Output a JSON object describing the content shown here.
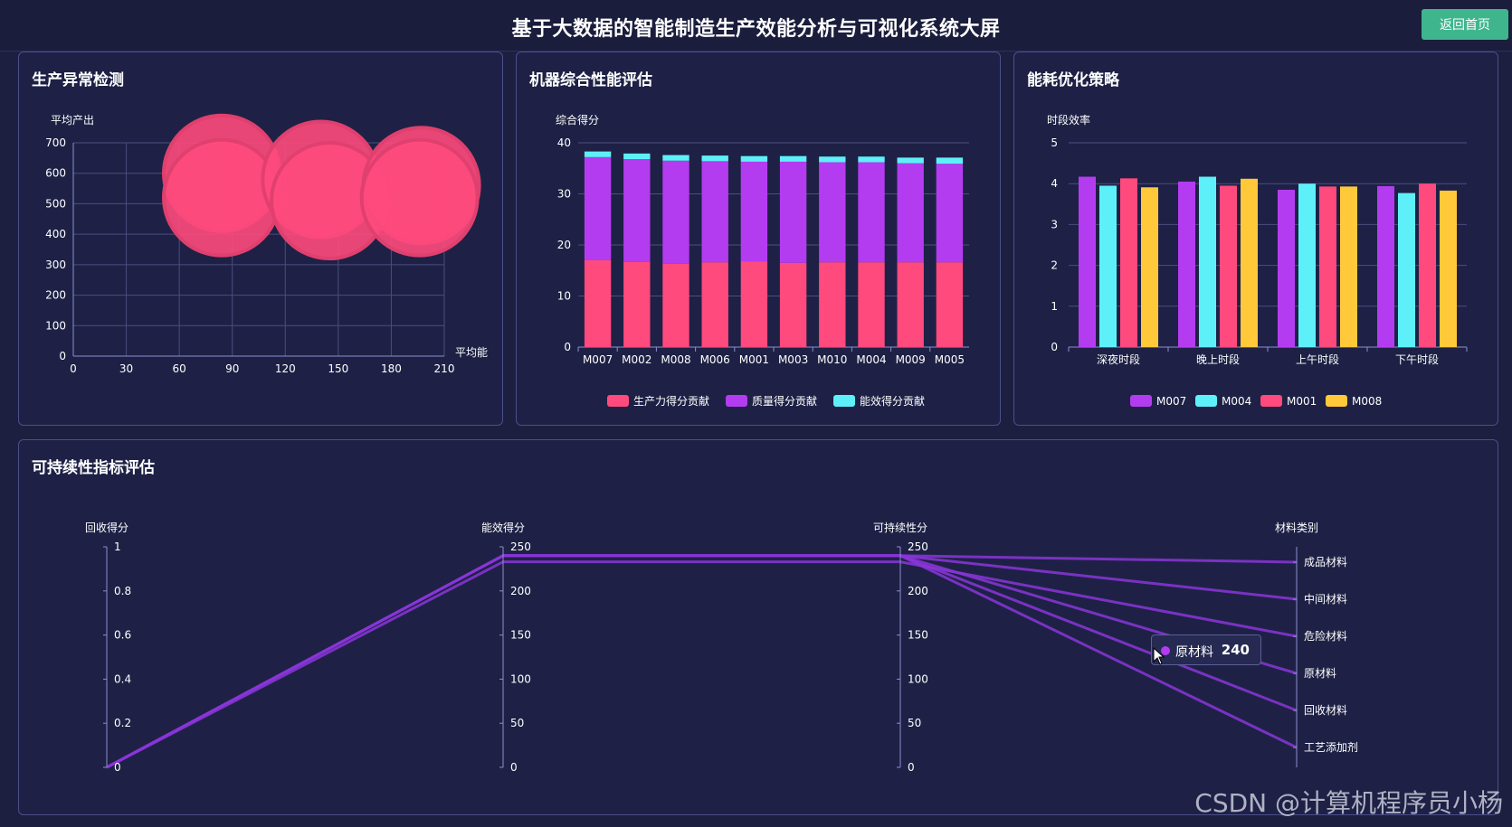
{
  "header": {
    "title": "基于大数据的智能制造生产效能分析与可视化系统大屏",
    "back_label": "返回首页"
  },
  "panels": {
    "anomaly": {
      "title": "生产异常检测"
    },
    "machine": {
      "title": "机器综合性能评估"
    },
    "energy": {
      "title": "能耗优化策略"
    },
    "sustain": {
      "title": "可持续性指标评估"
    }
  },
  "tooltip": {
    "label": "原材料",
    "value": "240"
  },
  "watermark": "CSDN @计算机程序员小杨",
  "colors": {
    "pink": "#ff4a7d",
    "purple": "#b43cf0",
    "cyan": "#5ef0f8",
    "yellow": "#ffc93a",
    "line_purple": "#9a3ce8"
  },
  "chart_data": [
    {
      "type": "scatter",
      "ylabel": "平均产出",
      "xlabel": "平均能",
      "xlim": [
        0,
        210
      ],
      "ylim": [
        0,
        700
      ],
      "x_ticks": [
        0,
        30,
        60,
        90,
        120,
        150,
        180,
        210
      ],
      "y_ticks": [
        0,
        100,
        200,
        300,
        400,
        500,
        600,
        700
      ],
      "points": [
        {
          "x": 84,
          "y": 600
        },
        {
          "x": 84,
          "y": 520
        },
        {
          "x": 140,
          "y": 580
        },
        {
          "x": 145,
          "y": 510
        },
        {
          "x": 197,
          "y": 560
        },
        {
          "x": 196,
          "y": 520
        }
      ]
    },
    {
      "type": "bar",
      "stacked": true,
      "ylabel": "综合得分",
      "ylim": [
        0,
        40
      ],
      "y_ticks": [
        0,
        10,
        20,
        30,
        40
      ],
      "categories": [
        "M007",
        "M002",
        "M008",
        "M006",
        "M001",
        "M003",
        "M010",
        "M004",
        "M009",
        "M005"
      ],
      "series": [
        {
          "name": "生产力得分贡献",
          "color": "#ff4a7d",
          "values": [
            17.0,
            16.7,
            16.3,
            16.6,
            16.8,
            16.5,
            16.6,
            16.6,
            16.6,
            16.6
          ]
        },
        {
          "name": "质量得分贡献",
          "color": "#b43cf0",
          "values": [
            20.2,
            20.1,
            20.2,
            19.8,
            19.5,
            19.8,
            19.6,
            19.6,
            19.4,
            19.3
          ]
        },
        {
          "name": "能效得分贡献",
          "color": "#5ef0f8",
          "values": [
            1.1,
            1.1,
            1.1,
            1.1,
            1.1,
            1.1,
            1.1,
            1.1,
            1.1,
            1.2
          ]
        }
      ]
    },
    {
      "type": "bar",
      "ylabel": "时段效率",
      "ylim": [
        0,
        5
      ],
      "y_ticks": [
        0,
        1,
        2,
        3,
        4,
        5
      ],
      "categories": [
        "深夜时段",
        "晚上时段",
        "上午时段",
        "下午时段"
      ],
      "series": [
        {
          "name": "M007",
          "color": "#b43cf0",
          "values": [
            4.17,
            4.05,
            3.85,
            3.94
          ]
        },
        {
          "name": "M004",
          "color": "#5ef0f8",
          "values": [
            3.95,
            4.17,
            4.0,
            3.77
          ]
        },
        {
          "name": "M001",
          "color": "#ff4a7d",
          "values": [
            4.13,
            3.95,
            3.93,
            4.0
          ]
        },
        {
          "name": "M008",
          "color": "#ffc93a",
          "values": [
            3.91,
            4.12,
            3.93,
            3.83
          ]
        }
      ]
    },
    {
      "type": "parallel",
      "axes": [
        {
          "name": "回收得分",
          "ticks": [
            "0",
            "0.2",
            "0.4",
            "0.6",
            "0.8",
            "1"
          ],
          "min": 0,
          "max": 1
        },
        {
          "name": "能效得分",
          "ticks": [
            "0",
            "50",
            "100",
            "150",
            "200",
            "250"
          ],
          "min": 0,
          "max": 250
        },
        {
          "name": "可持续性分",
          "ticks": [
            "0",
            "50",
            "100",
            "150",
            "200",
            "250"
          ],
          "min": 0,
          "max": 250
        },
        {
          "name": "材料类别",
          "categories": [
            "工艺添加剂",
            "回收材料",
            "原材料",
            "危险材料",
            "中间材料",
            "成品材料"
          ]
        }
      ],
      "lines": [
        {
          "values": [
            0,
            240,
            240,
            "成品材料"
          ]
        },
        {
          "values": [
            0,
            240,
            240,
            "中间材料"
          ]
        },
        {
          "values": [
            0,
            233,
            233,
            "危险材料"
          ]
        },
        {
          "values": [
            0,
            240,
            240,
            "原材料"
          ]
        },
        {
          "values": [
            0,
            240,
            240,
            "回收材料"
          ]
        },
        {
          "values": [
            0,
            240,
            240,
            "工艺添加剂"
          ]
        }
      ]
    }
  ]
}
